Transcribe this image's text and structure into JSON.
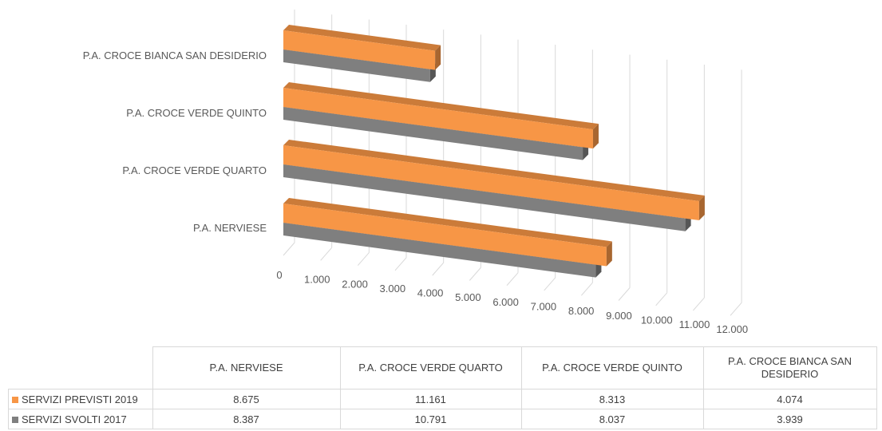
{
  "chart_data": {
    "type": "bar",
    "orientation": "horizontal",
    "style": "3d",
    "categories": [
      "P.A. NERVIESE",
      "P.A. CROCE VERDE QUARTO",
      "P.A. CROCE VERDE QUINTO",
      "P.A. CROCE BIANCA SAN DESIDERIO"
    ],
    "series": [
      {
        "name": "SERVIZI PREVISTI 2019",
        "color": "#f79646",
        "values": [
          8675,
          11161,
          8313,
          4074
        ],
        "labels": [
          "8.675",
          "11.161",
          "8.313",
          "4.074"
        ]
      },
      {
        "name": "SERVIZI SVOLTI 2017",
        "color": "#7f7f7f",
        "values": [
          8387,
          10791,
          8037,
          3939
        ],
        "labels": [
          "8.387",
          "10.791",
          "8.037",
          "3.939"
        ]
      }
    ],
    "xlim": [
      0,
      12000
    ],
    "ticks": [
      0,
      1000,
      2000,
      3000,
      4000,
      5000,
      6000,
      7000,
      8000,
      9000,
      10000,
      11000,
      12000
    ],
    "tick_labels": [
      "0",
      "1.000",
      "2.000",
      "3.000",
      "4.000",
      "5.000",
      "6.000",
      "7.000",
      "8.000",
      "9.000",
      "10.000",
      "11.000",
      "12.000"
    ],
    "table_headers": [
      "P.A. NERVIESE",
      "P.A. CROCE VERDE QUARTO",
      "P.A. CROCE VERDE QUINTO",
      "P.A. CROCE BIANCA SAN DESIDERIO"
    ],
    "grid": true,
    "legend": "data-table"
  }
}
